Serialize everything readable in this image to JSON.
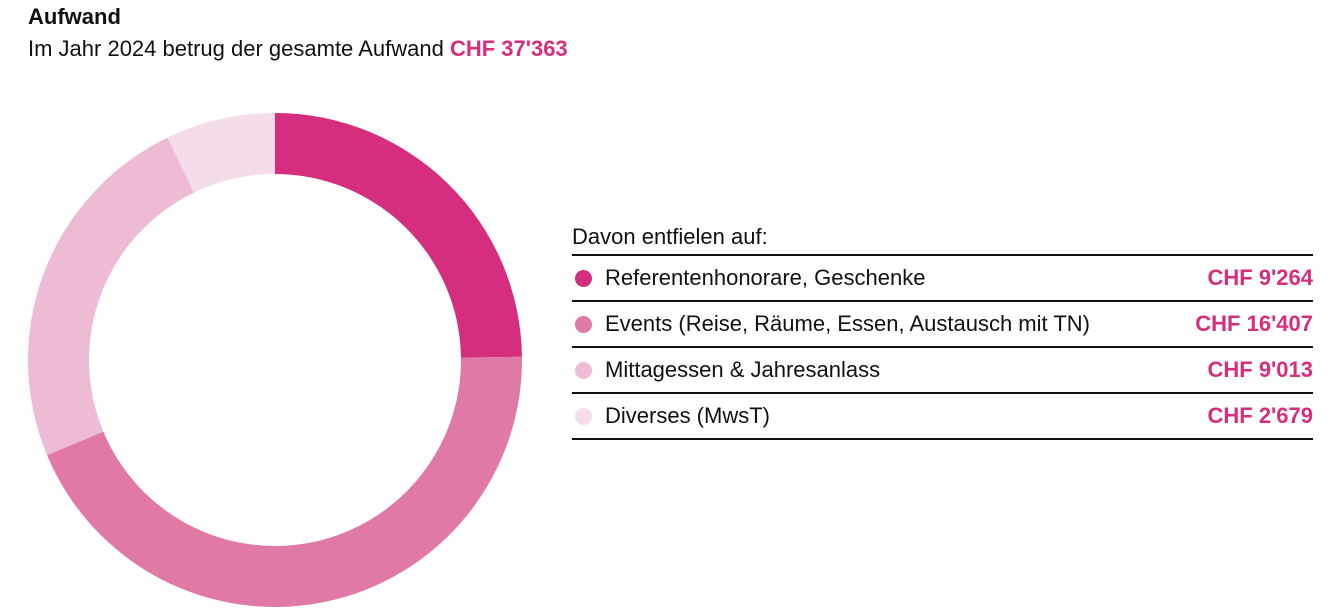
{
  "header": {
    "title": "Aufwand",
    "subtitle": "Im Jahr 2024 betrug der gesamte Aufwand",
    "total": "CHF 37'363"
  },
  "legend": {
    "heading": "Davon entfielen auf:"
  },
  "chart_data": {
    "type": "pie",
    "title": "Aufwand",
    "categories": [
      "Referentenhonorare, Geschenke",
      "Events (Reise, Räume, Essen, Austausch mit TN)",
      "Mittagessen & Jahresanlass",
      "Diverses (MwsT)"
    ],
    "values": [
      9264,
      16407,
      9013,
      2679
    ],
    "value_labels": [
      "CHF 9'264",
      "CHF 16'407",
      "CHF 9'013",
      "CHF 2'679"
    ],
    "colors": [
      "#d62e7e",
      "#e079a6",
      "#eebbd4",
      "#f5dcea"
    ],
    "donut": true,
    "legend_position": "right"
  }
}
